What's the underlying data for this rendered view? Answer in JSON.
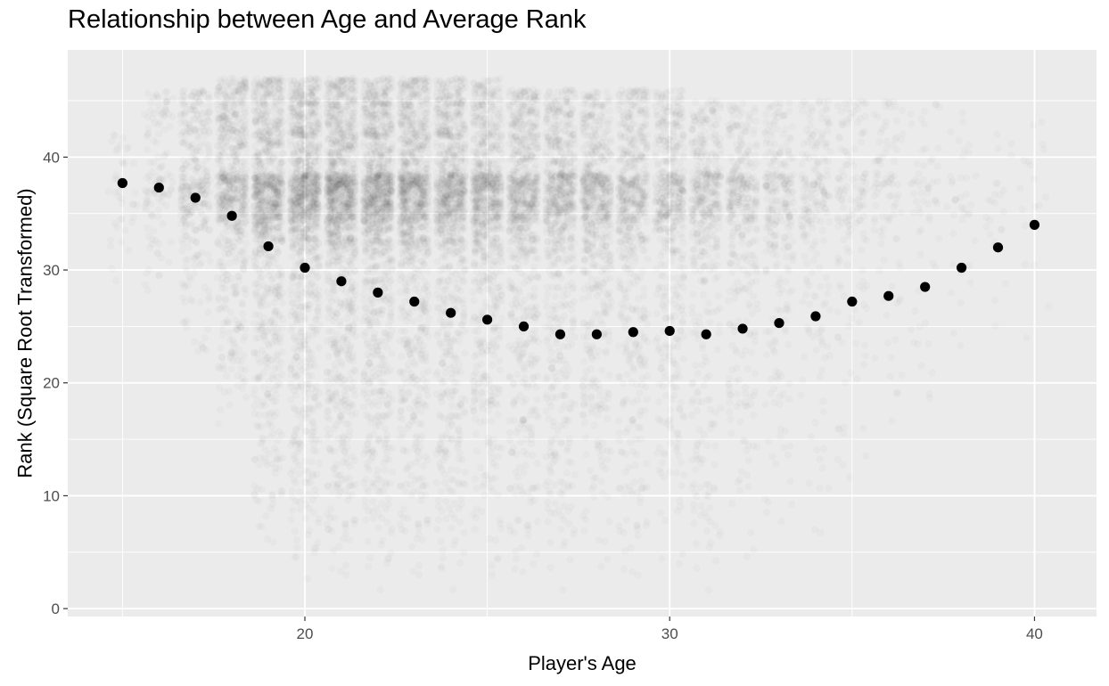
{
  "chart_data": {
    "type": "scatter",
    "title": "Relationship between Age and Average Rank",
    "xlabel": "Player's Age",
    "ylabel": "Rank (Square Root Transformed)",
    "xlim": [
      13.5,
      41.7
    ],
    "ylim": [
      -0.7,
      49.5
    ],
    "x_ticks": [
      20,
      30,
      40
    ],
    "y_ticks": [
      0,
      10,
      20,
      30,
      40
    ],
    "grid": true,
    "legend": "none",
    "colors": {
      "panel": "#ebebeb",
      "grid_major": "#ffffff",
      "mean_point": "#000000",
      "raw_point": "#000000"
    },
    "series": [
      {
        "values_role": "average rank by age",
        "x": [
          15,
          16,
          17,
          18,
          19,
          20,
          21,
          22,
          23,
          24,
          25,
          26,
          27,
          28,
          29,
          30,
          31,
          32,
          33,
          34,
          35,
          36,
          37,
          38,
          39,
          40
        ],
        "y": [
          37.7,
          37.3,
          36.4,
          34.8,
          32.1,
          30.2,
          29.0,
          28.0,
          27.2,
          26.2,
          25.6,
          25.0,
          24.3,
          24.3,
          24.5,
          24.6,
          24.3,
          24.8,
          25.3,
          25.9,
          27.2,
          27.7,
          28.5,
          30.2,
          32.0,
          34.0
        ]
      }
    ],
    "raw_points": {
      "opacity": 0.02,
      "by_age": [
        {
          "age": 15,
          "n": 40,
          "min": 28,
          "max": 42
        },
        {
          "age": 16,
          "n": 120,
          "min": 26,
          "max": 46
        },
        {
          "age": 17,
          "n": 330,
          "min": 20,
          "max": 46
        },
        {
          "age": 18,
          "n": 650,
          "min": 15,
          "max": 47
        },
        {
          "age": 19,
          "n": 950,
          "min": 4,
          "max": 47
        },
        {
          "age": 20,
          "n": 1100,
          "min": 2,
          "max": 47
        },
        {
          "age": 21,
          "n": 1150,
          "min": 1,
          "max": 47
        },
        {
          "age": 22,
          "n": 1100,
          "min": 1,
          "max": 47
        },
        {
          "age": 23,
          "n": 1000,
          "min": 1,
          "max": 47
        },
        {
          "age": 24,
          "n": 920,
          "min": 1,
          "max": 47
        },
        {
          "age": 25,
          "n": 830,
          "min": 1,
          "max": 47
        },
        {
          "age": 26,
          "n": 760,
          "min": 1,
          "max": 46
        },
        {
          "age": 27,
          "n": 700,
          "min": 1,
          "max": 46
        },
        {
          "age": 28,
          "n": 640,
          "min": 1,
          "max": 46
        },
        {
          "age": 29,
          "n": 580,
          "min": 1,
          "max": 46
        },
        {
          "age": 30,
          "n": 520,
          "min": 1,
          "max": 46
        },
        {
          "age": 31,
          "n": 450,
          "min": 1,
          "max": 45
        },
        {
          "age": 32,
          "n": 360,
          "min": 2,
          "max": 45
        },
        {
          "age": 33,
          "n": 270,
          "min": 3,
          "max": 45
        },
        {
          "age": 34,
          "n": 200,
          "min": 5,
          "max": 45
        },
        {
          "age": 35,
          "n": 140,
          "min": 8,
          "max": 45
        },
        {
          "age": 36,
          "n": 95,
          "min": 12,
          "max": 45
        },
        {
          "age": 37,
          "n": 60,
          "min": 15,
          "max": 45
        },
        {
          "age": 38,
          "n": 38,
          "min": 18,
          "max": 44
        },
        {
          "age": 39,
          "n": 25,
          "min": 20,
          "max": 44
        },
        {
          "age": 40,
          "n": 18,
          "min": 22,
          "max": 44
        }
      ]
    }
  }
}
